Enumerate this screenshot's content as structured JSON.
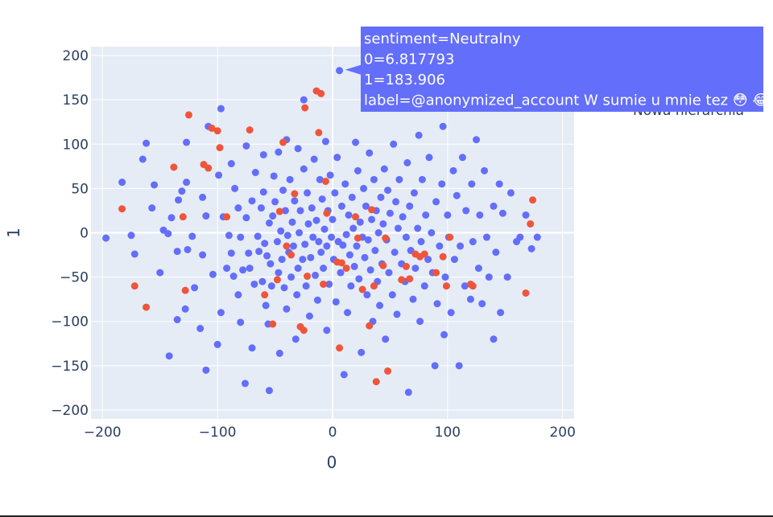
{
  "colors": {
    "plot_bg": "#e5ecf6",
    "grid": "#ffffff",
    "text": "#2a3f5f",
    "neutral": "#636efa",
    "other": "#ef553b",
    "hover_bg": "#636efa"
  },
  "chart_data": {
    "type": "scatter",
    "xlabel": "0",
    "ylabel": "1",
    "xlim": [
      -210,
      210
    ],
    "ylim": [
      -210,
      210
    ],
    "x_ticks": [
      -200,
      -100,
      0,
      100,
      200
    ],
    "y_ticks": [
      -200,
      -150,
      -100,
      -50,
      0,
      50,
      100,
      150,
      200
    ],
    "x_tick_labels": [
      "−200",
      "−100",
      "0",
      "100",
      "200"
    ],
    "y_tick_labels": [
      "−200",
      "−150",
      "−100",
      "−50",
      "0",
      "50",
      "100",
      "150",
      "200"
    ],
    "grid": true,
    "legend_placement": "top-right",
    "legend_partial_text": "Nowa hierarchia",
    "series": [
      {
        "name": "Neutralny",
        "points": [
          [
            -197,
            -6
          ],
          [
            -183,
            57
          ],
          [
            -175,
            -3
          ],
          [
            -172,
            -24
          ],
          [
            -165,
            83
          ],
          [
            -162,
            101
          ],
          [
            -157,
            28
          ],
          [
            -155,
            54
          ],
          [
            -150,
            -45
          ],
          [
            -147,
            3
          ],
          [
            -143,
            -1
          ],
          [
            -142,
            -139
          ],
          [
            -140,
            17
          ],
          [
            -135,
            -21
          ],
          [
            -135,
            -98
          ],
          [
            -134,
            37
          ],
          [
            -131,
            47
          ],
          [
            -128,
            -86
          ],
          [
            -127,
            102
          ],
          [
            -127,
            57
          ],
          [
            -126,
            -19
          ],
          [
            -122,
            -4
          ],
          [
            -120,
            -62
          ],
          [
            -115,
            -108
          ],
          [
            -113,
            -25
          ],
          [
            -113,
            40
          ],
          [
            -110,
            -155
          ],
          [
            -110,
            19
          ],
          [
            -108,
            120
          ],
          [
            -104,
            -47
          ],
          [
            -100,
            -126
          ],
          [
            -99,
            65
          ],
          [
            -97,
            -90
          ],
          [
            -97,
            140
          ],
          [
            -95,
            18
          ],
          [
            -92,
            -40
          ],
          [
            -90,
            -3
          ],
          [
            -88,
            -23
          ],
          [
            -88,
            78
          ],
          [
            -86,
            -49
          ],
          [
            -85,
            50
          ],
          [
            -82,
            -70
          ],
          [
            -82,
            28
          ],
          [
            -80,
            -101
          ],
          [
            -80,
            -5
          ],
          [
            -78,
            -42
          ],
          [
            -76,
            -170
          ],
          [
            -75,
            17
          ],
          [
            -75,
            98
          ],
          [
            -73,
            -23
          ],
          [
            -72,
            -40
          ],
          [
            -70,
            36
          ],
          [
            -70,
            -130
          ],
          [
            -68,
            -58
          ],
          [
            -67,
            68
          ],
          [
            -65,
            -4
          ],
          [
            -64,
            -21
          ],
          [
            -62,
            28
          ],
          [
            -61,
            -55
          ],
          [
            -60,
            88
          ],
          [
            -60,
            46
          ],
          [
            -59,
            -12
          ],
          [
            -58,
            -82
          ],
          [
            -57,
            -26
          ],
          [
            -56,
            -103
          ],
          [
            -55,
            11
          ],
          [
            -55,
            -178
          ],
          [
            -54,
            -35
          ],
          [
            -53,
            -60
          ],
          [
            -52,
            19
          ],
          [
            -51,
            64
          ],
          [
            -50,
            35
          ],
          [
            -48,
            -10
          ],
          [
            -47,
            -45
          ],
          [
            -47,
            91
          ],
          [
            -46,
            -136
          ],
          [
            -45,
            2
          ],
          [
            -44,
            -30
          ],
          [
            -43,
            48
          ],
          [
            -42,
            -62
          ],
          [
            -41,
            25
          ],
          [
            -40,
            -86
          ],
          [
            -40,
            105
          ],
          [
            -39,
            -3
          ],
          [
            -38,
            -22
          ],
          [
            -37,
            60
          ],
          [
            -36,
            -50
          ],
          [
            -35,
            12
          ],
          [
            -34,
            -15
          ],
          [
            -33,
            36
          ],
          [
            -32,
            -120
          ],
          [
            -31,
            -70
          ],
          [
            -30,
            95
          ],
          [
            -30,
            -40
          ],
          [
            -29,
            0
          ],
          [
            -28,
            25
          ],
          [
            -26,
            -30
          ],
          [
            -25,
            150
          ],
          [
            -25,
            72
          ],
          [
            -24,
            -13
          ],
          [
            -23,
            -60
          ],
          [
            -22,
            45
          ],
          [
            -21,
            10
          ],
          [
            -20,
            -94
          ],
          [
            -19,
            -28
          ],
          [
            -18,
            28
          ],
          [
            -17,
            -5
          ],
          [
            -16,
            83
          ],
          [
            -15,
            -48
          ],
          [
            -14,
            14
          ],
          [
            -13,
            -76
          ],
          [
            -12,
            -10
          ],
          [
            -11,
            60
          ],
          [
            -10,
            -22
          ],
          [
            -9,
            38
          ],
          [
            -8,
            -40
          ],
          [
            -7,
            4
          ],
          [
            -6,
            103
          ],
          [
            -5,
            -110
          ],
          [
            -5,
            -15
          ],
          [
            -4,
            25
          ],
          [
            -3,
            -58
          ],
          [
            -2,
            65
          ],
          [
            -1,
            -5
          ],
          [
            0,
            15
          ],
          [
            1,
            -30
          ],
          [
            2,
            45
          ],
          [
            3,
            -78
          ],
          [
            4,
            85
          ],
          [
            5,
            -10
          ],
          [
            6,
            183
          ],
          [
            7,
            -45
          ],
          [
            8,
            30
          ],
          [
            9,
            -14
          ],
          [
            10,
            -160
          ],
          [
            11,
            55
          ],
          [
            12,
            -2
          ],
          [
            13,
            -90
          ],
          [
            14,
            20
          ],
          [
            15,
            -25
          ],
          [
            16,
            -60
          ],
          [
            17,
            40
          ],
          [
            18,
            5
          ],
          [
            19,
            -38
          ],
          [
            20,
            102
          ],
          [
            21,
            -15
          ],
          [
            22,
            70
          ],
          [
            23,
            -52
          ],
          [
            24,
            12
          ],
          [
            25,
            -135
          ],
          [
            26,
            -5
          ],
          [
            27,
            50
          ],
          [
            28,
            -28
          ],
          [
            29,
            30
          ],
          [
            30,
            -70
          ],
          [
            31,
            -8
          ],
          [
            32,
            90
          ],
          [
            33,
            -42
          ],
          [
            34,
            15
          ],
          [
            35,
            -100
          ],
          [
            36,
            60
          ],
          [
            37,
            -20
          ],
          [
            38,
            25
          ],
          [
            39,
            -55
          ],
          [
            40,
            0
          ],
          [
            41,
            -82
          ],
          [
            42,
            40
          ],
          [
            43,
            -35
          ],
          [
            44,
            10
          ],
          [
            45,
            72
          ],
          [
            46,
            -120
          ],
          [
            47,
            -8
          ],
          [
            48,
            48
          ],
          [
            49,
            -45
          ],
          [
            50,
            22
          ],
          [
            52,
            -70
          ],
          [
            53,
            100
          ],
          [
            54,
            -22
          ],
          [
            55,
            35
          ],
          [
            56,
            -92
          ],
          [
            57,
            5
          ],
          [
            58,
            60
          ],
          [
            60,
            -35
          ],
          [
            61,
            18
          ],
          [
            63,
            -55
          ],
          [
            64,
            -5
          ],
          [
            65,
            79
          ],
          [
            66,
            -180
          ],
          [
            67,
            30
          ],
          [
            68,
            -20
          ],
          [
            70,
            -75
          ],
          [
            71,
            45
          ],
          [
            72,
            -40
          ],
          [
            74,
            5
          ],
          [
            75,
            110
          ],
          [
            76,
            -100
          ],
          [
            77,
            -10
          ],
          [
            78,
            60
          ],
          [
            80,
            -60
          ],
          [
            81,
            20
          ],
          [
            83,
            -30
          ],
          [
            84,
            85
          ],
          [
            86,
            0
          ],
          [
            87,
            -45
          ],
          [
            89,
            -150
          ],
          [
            90,
            35
          ],
          [
            91,
            -80
          ],
          [
            93,
            -15
          ],
          [
            95,
            55
          ],
          [
            96,
            120
          ],
          [
            97,
            -115
          ],
          [
            98,
            -50
          ],
          [
            100,
            20
          ],
          [
            101,
            -5
          ],
          [
            103,
            -90
          ],
          [
            105,
            70
          ],
          [
            106,
            -30
          ],
          [
            108,
            42
          ],
          [
            110,
            -150
          ],
          [
            111,
            -15
          ],
          [
            113,
            85
          ],
          [
            115,
            -60
          ],
          [
            116,
            25
          ],
          [
            120,
            -75
          ],
          [
            121,
            55
          ],
          [
            122,
            -10
          ],
          [
            125,
            105
          ],
          [
            127,
            -40
          ],
          [
            128,
            20
          ],
          [
            130,
            -80
          ],
          [
            132,
            70
          ],
          [
            134,
            -5
          ],
          [
            136,
            -50
          ],
          [
            140,
            30
          ],
          [
            140,
            -120
          ],
          [
            142,
            -22
          ],
          [
            145,
            55
          ],
          [
            146,
            -90
          ],
          [
            148,
            22
          ],
          [
            152,
            -50
          ],
          [
            155,
            45
          ],
          [
            160,
            -10
          ],
          [
            163,
            -5
          ],
          [
            168,
            20
          ],
          [
            173,
            -18
          ],
          [
            178,
            -5
          ]
        ]
      },
      {
        "name": "",
        "points": [
          [
            -183,
            27
          ],
          [
            -172,
            -60
          ],
          [
            -162,
            -84
          ],
          [
            -138,
            74
          ],
          [
            -130,
            18
          ],
          [
            -128,
            -65
          ],
          [
            -125,
            133
          ],
          [
            -112,
            77
          ],
          [
            -108,
            73
          ],
          [
            -105,
            118
          ],
          [
            -100,
            115
          ],
          [
            -98,
            96
          ],
          [
            -92,
            18
          ],
          [
            -72,
            116
          ],
          [
            -59,
            -70
          ],
          [
            -52,
            -103
          ],
          [
            -48,
            -53
          ],
          [
            -46,
            24
          ],
          [
            -43,
            102
          ],
          [
            -40,
            -15
          ],
          [
            -36,
            -25
          ],
          [
            -33,
            44
          ],
          [
            -28,
            -106
          ],
          [
            -25,
            -110
          ],
          [
            -24,
            141
          ],
          [
            -22,
            -49
          ],
          [
            -14,
            160
          ],
          [
            -12,
            113
          ],
          [
            -10,
            157
          ],
          [
            -8,
            -58
          ],
          [
            -6,
            58
          ],
          [
            -5,
            22
          ],
          [
            4,
            -33
          ],
          [
            6,
            -130
          ],
          [
            8,
            -34
          ],
          [
            12,
            -40
          ],
          [
            20,
            18
          ],
          [
            22,
            -6
          ],
          [
            26,
            -64
          ],
          [
            32,
            -105
          ],
          [
            34,
            26
          ],
          [
            36,
            -60
          ],
          [
            38,
            -168
          ],
          [
            44,
            -37
          ],
          [
            46,
            -6
          ],
          [
            48,
            -156
          ],
          [
            60,
            -53
          ],
          [
            64,
            -38
          ],
          [
            67,
            -52
          ],
          [
            72,
            -24
          ],
          [
            76,
            -27
          ],
          [
            80,
            -24
          ],
          [
            90,
            -45
          ],
          [
            96,
            -27
          ],
          [
            99,
            -60
          ],
          [
            102,
            -5
          ],
          [
            120,
            -58
          ],
          [
            122,
            -60
          ],
          [
            168,
            -68
          ],
          [
            172,
            10
          ],
          [
            174,
            37
          ]
        ]
      }
    ],
    "hover": {
      "series": "Neutralny",
      "point": [
        6.817793,
        183.906
      ],
      "lines": [
        "sentiment=Neutralny",
        "0=6.817793",
        "1=183.906",
        "label=@anonymized_account W sumie u mnie tez 😳 😂"
      ]
    }
  }
}
